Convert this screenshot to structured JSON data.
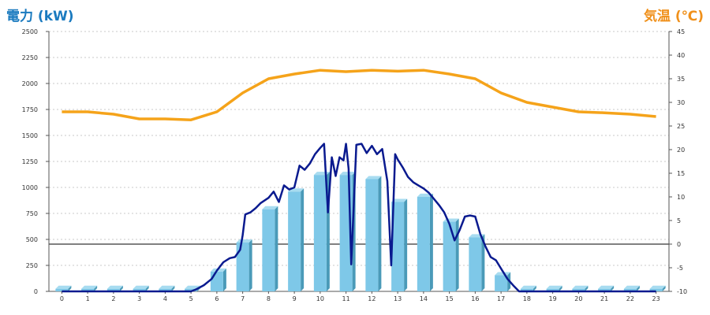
{
  "chart_data": {
    "type": "bar+line",
    "left_axis_label": "電力 (kW)",
    "right_axis_label": "気温 (℃)",
    "left_ylim": [
      0,
      2500
    ],
    "left_ticks": [
      0,
      250,
      500,
      750,
      1000,
      1250,
      1500,
      1750,
      2000,
      2250,
      2500
    ],
    "right_ylim": [
      -10,
      45
    ],
    "right_ticks": [
      -10,
      -5,
      0,
      5,
      10,
      15,
      20,
      25,
      30,
      35,
      40,
      45
    ],
    "categories": [
      "0",
      "1",
      "2",
      "3",
      "4",
      "5",
      "6",
      "7",
      "8",
      "9",
      "10",
      "11",
      "12",
      "13",
      "14",
      "15",
      "16",
      "17",
      "18",
      "19",
      "20",
      "21",
      "22",
      "23"
    ],
    "grid": true,
    "series": [
      {
        "kind": "bar",
        "axis": "left",
        "color": "#7ec8e8",
        "values": [
          25,
          25,
          25,
          25,
          25,
          25,
          190,
          470,
          790,
          960,
          1120,
          1120,
          1080,
          860,
          910,
          670,
          520,
          155,
          25,
          25,
          25,
          25,
          25,
          25
        ]
      },
      {
        "kind": "line",
        "axis": "left",
        "color": "#0a1a8f",
        "x": [
          0,
          0.5,
          1,
          1.5,
          2,
          2.5,
          3,
          3.5,
          4,
          4.5,
          5,
          5.2,
          5.5,
          5.8,
          6,
          6.25,
          6.5,
          6.7,
          6.9,
          7,
          7.1,
          7.3,
          7.5,
          7.7,
          8,
          8.2,
          8.4,
          8.6,
          8.8,
          9,
          9.2,
          9.4,
          9.6,
          9.8,
          10,
          10.15,
          10.3,
          10.45,
          10.6,
          10.75,
          10.9,
          11,
          11.1,
          11.2,
          11.4,
          11.6,
          11.8,
          12,
          12.2,
          12.4,
          12.6,
          12.75,
          12.9,
          13,
          13.2,
          13.4,
          13.6,
          13.8,
          14,
          14.2,
          14.4,
          14.6,
          14.8,
          15,
          15.2,
          15.4,
          15.6,
          15.8,
          16,
          16.2,
          16.4,
          16.6,
          16.8,
          17,
          17.25,
          17.5,
          17.7,
          18,
          19,
          20,
          21,
          22,
          23
        ],
        "values": [
          0,
          0,
          0,
          0,
          0,
          0,
          0,
          0,
          0,
          0,
          0,
          20,
          60,
          120,
          200,
          280,
          320,
          330,
          400,
          540,
          740,
          760,
          800,
          850,
          900,
          960,
          860,
          1020,
          980,
          1000,
          1210,
          1170,
          1230,
          1320,
          1380,
          1420,
          760,
          1290,
          1110,
          1290,
          1260,
          1420,
          1180,
          260,
          1410,
          1420,
          1330,
          1400,
          1320,
          1370,
          1060,
          250,
          1320,
          1270,
          1190,
          1100,
          1050,
          1020,
          990,
          950,
          890,
          830,
          760,
          650,
          490,
          590,
          720,
          730,
          720,
          550,
          430,
          330,
          300,
          220,
          120,
          50,
          0,
          0,
          0,
          0,
          0,
          0,
          0
        ]
      },
      {
        "kind": "line",
        "axis": "right",
        "color": "#f5a31a",
        "values": [
          28,
          28,
          27.5,
          26.5,
          26.5,
          26.3,
          28,
          32,
          35,
          36,
          36.8,
          36.5,
          36.8,
          36.6,
          36.8,
          36,
          35,
          32,
          30,
          29,
          28,
          27.8,
          27.5,
          27
        ]
      }
    ]
  }
}
